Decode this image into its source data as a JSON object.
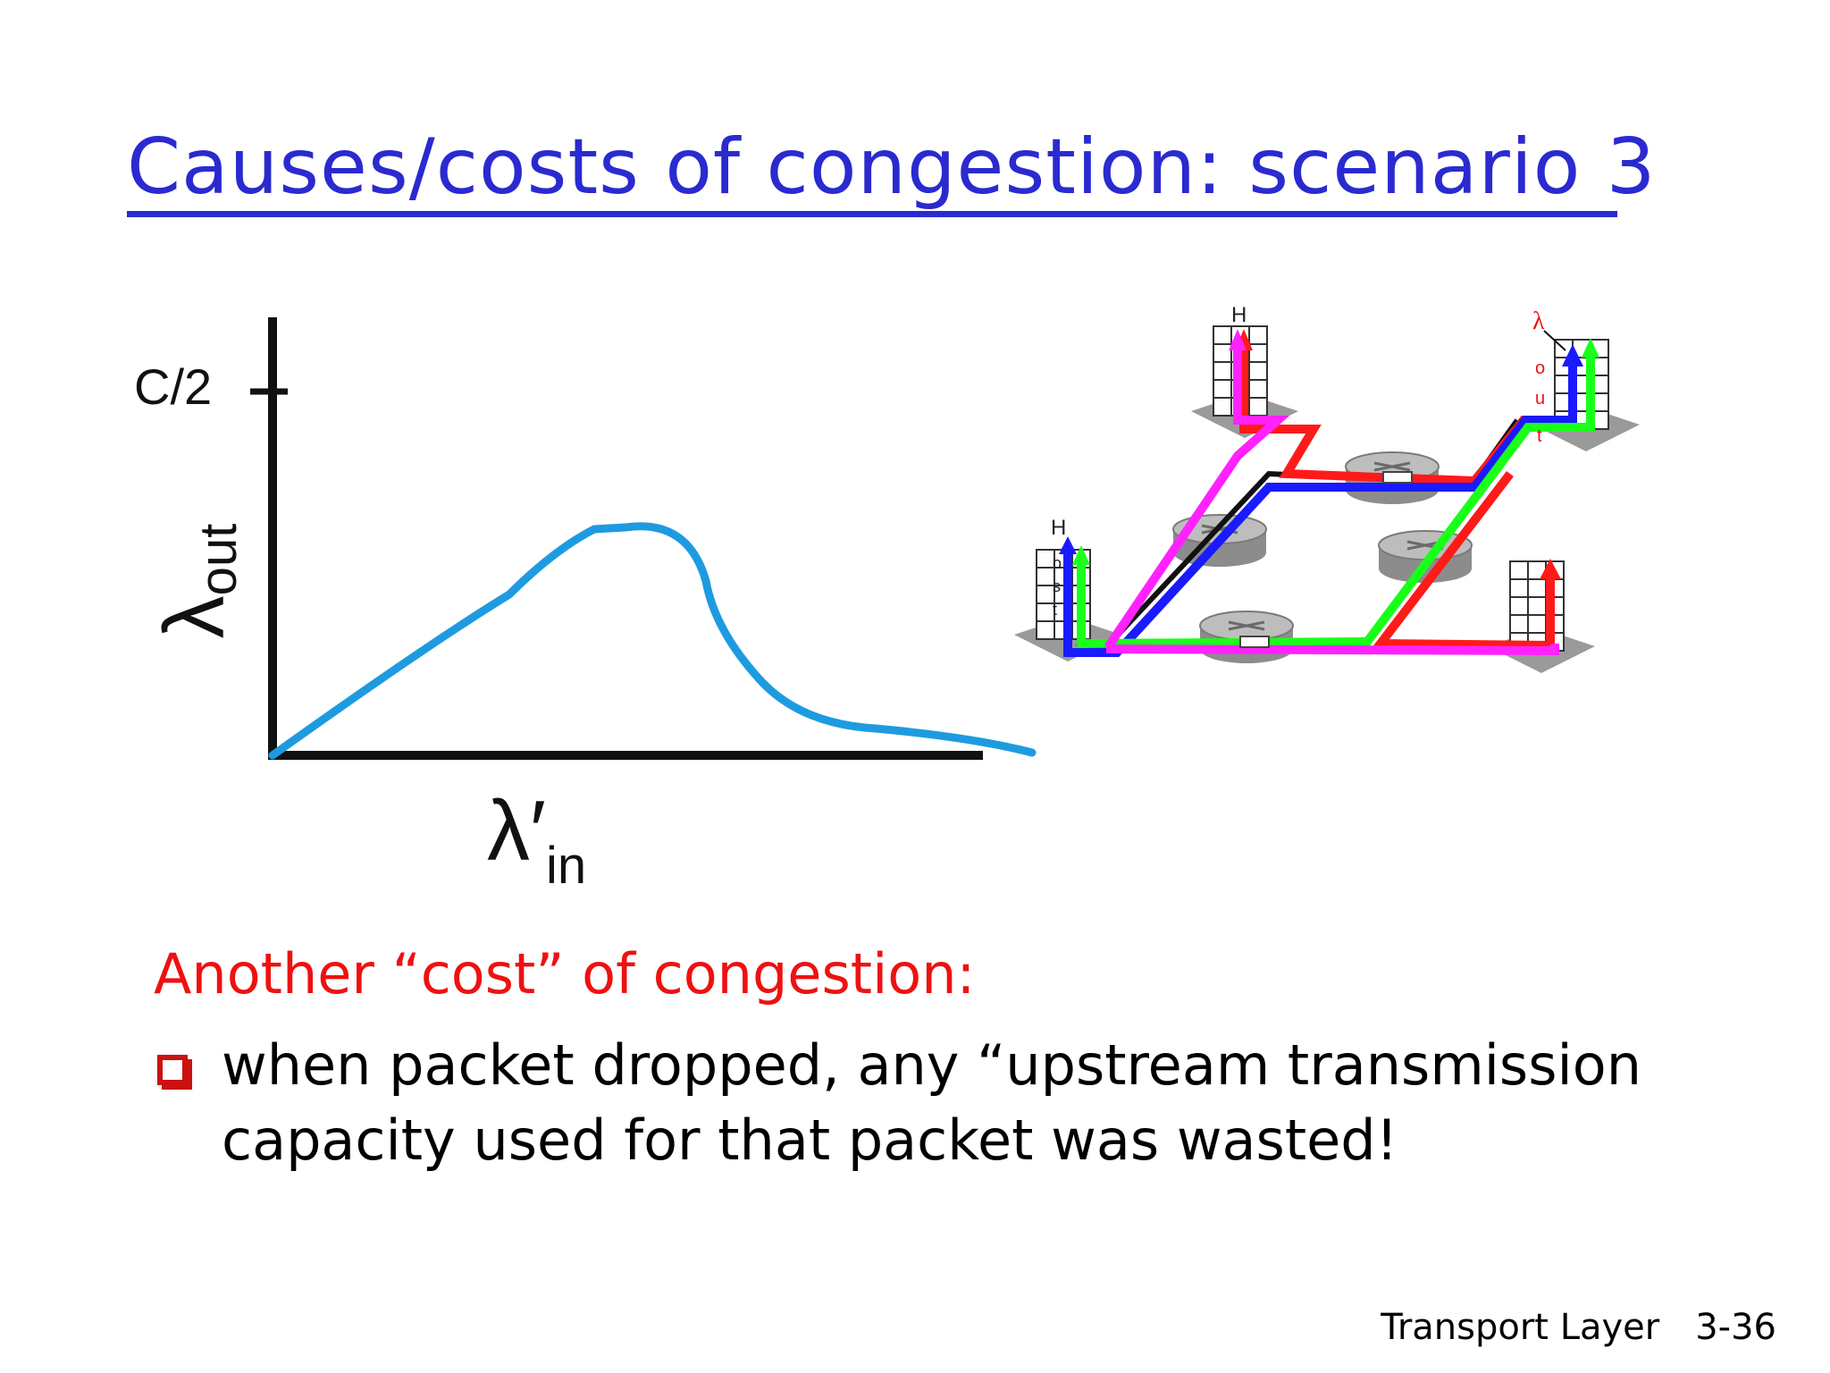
{
  "slide": {
    "title": "Causes/costs of congestion: scenario 3",
    "cost_heading": "Another “cost” of congestion:",
    "bullet_text": "when packet dropped, any “upstream transmission capacity used for that packet was wasted!",
    "footer_section": "Transport Layer",
    "footer_page": "3-36"
  },
  "graph": {
    "y_tick_label": "C/2",
    "y_axis_symbol": "λ",
    "y_axis_subscript": "out",
    "x_axis_symbol": "λ′",
    "x_axis_subscript": "in"
  },
  "diagram": {
    "host_top_label": "H",
    "host_left_label": "H",
    "host_left_letters": [
      "o",
      "s",
      "t"
    ],
    "lambda_symbol": "λ",
    "lambda_letters": [
      "o",
      "u",
      "t"
    ],
    "colors": {
      "red": "#ff1a1a",
      "blue": "#1a1aff",
      "green": "#1aff1a",
      "magenta": "#ff22ff",
      "curve": "#1e9be0"
    }
  }
}
